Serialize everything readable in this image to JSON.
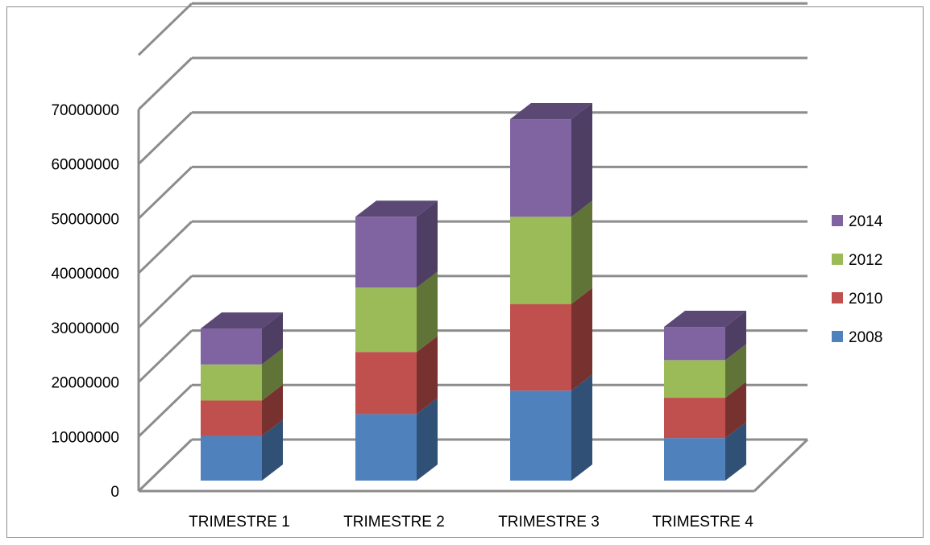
{
  "chart_data": {
    "type": "bar",
    "stacked": true,
    "three_d": true,
    "title": "",
    "xlabel": "",
    "ylabel": "",
    "categories": [
      "TRIMESTRE 1",
      "TRIMESTRE 2",
      "TRIMESTRE 3",
      "TRIMESTRE 4"
    ],
    "ylim": [
      0,
      70000000
    ],
    "yticks": [
      "0",
      "10000000",
      "20000000",
      "30000000",
      "40000000",
      "50000000",
      "60000000",
      "70000000"
    ],
    "grid": true,
    "legend_position": "right",
    "series": [
      {
        "name": "2008",
        "color": "#4F81BD",
        "values": [
          8200000,
          12200000,
          16500000,
          7800000
        ]
      },
      {
        "name": "2010",
        "color": "#C0504D",
        "values": [
          6500000,
          11400000,
          15900000,
          7400000
        ]
      },
      {
        "name": "2012",
        "color": "#9BBB59",
        "values": [
          6600000,
          11800000,
          16000000,
          6900000
        ]
      },
      {
        "name": "2014",
        "color": "#8064A2",
        "values": [
          6600000,
          13000000,
          17900000,
          6100000
        ]
      }
    ]
  }
}
